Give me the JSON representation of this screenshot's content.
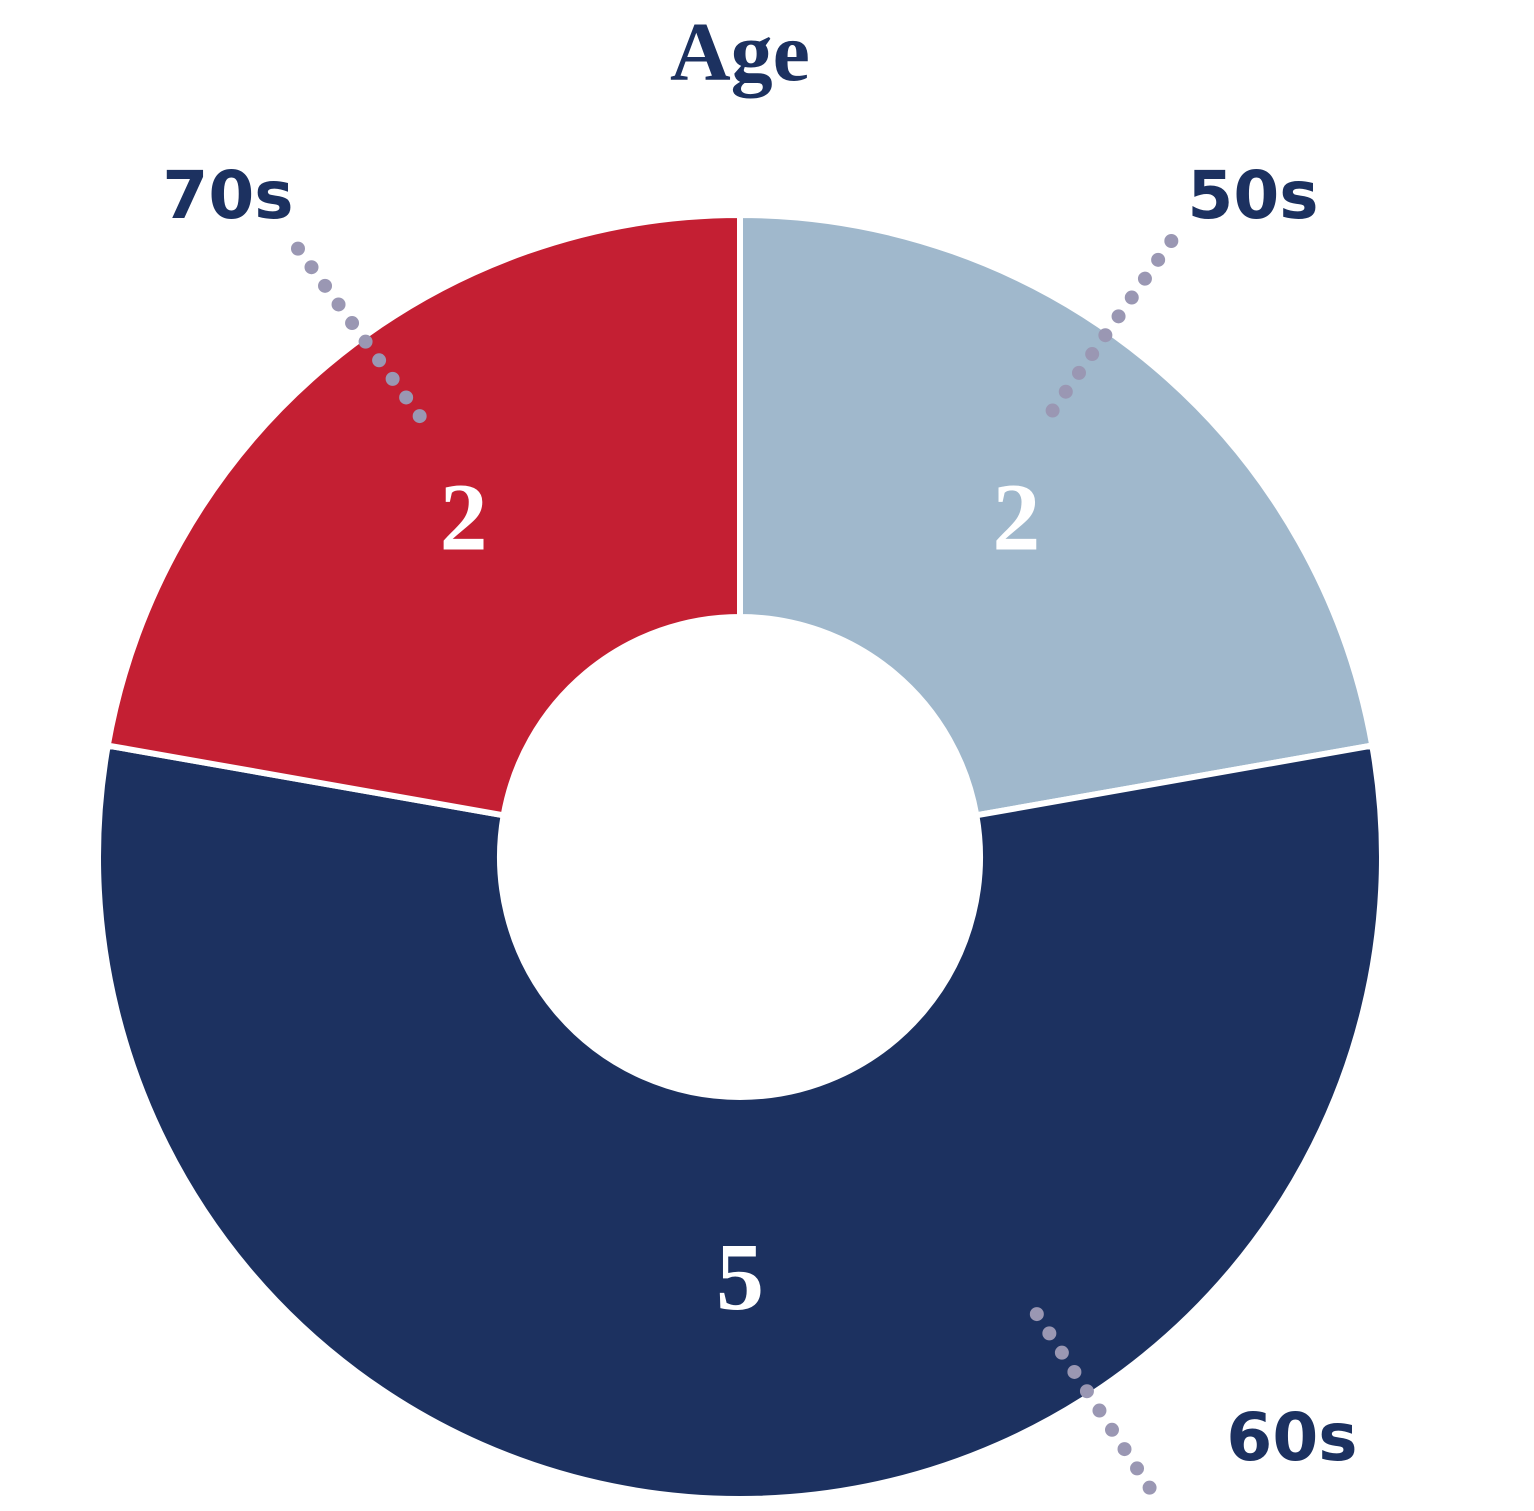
{
  "chart_data": {
    "type": "donut",
    "title": "Age",
    "categories": [
      "50s",
      "60s",
      "70s"
    ],
    "values": [
      2,
      5,
      2
    ],
    "colors": [
      "#a0b8cc",
      "#1c3160",
      "#c41f33"
    ]
  }
}
